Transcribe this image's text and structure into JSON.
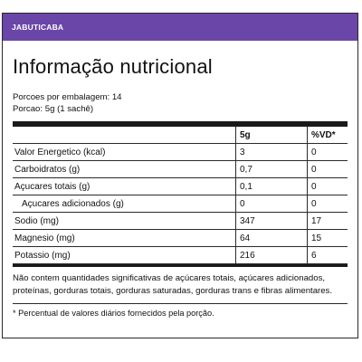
{
  "banner": "JABUTICABA",
  "title": "Informação nutricional",
  "servings_per_pack": "Porcoes por embalagem: 14",
  "serving_size": "Porcao: 5g (1 sachê)",
  "table": {
    "headers": [
      "",
      "5g",
      "%VD*"
    ],
    "rows": [
      {
        "label": "Valor Energetico (kcal)",
        "amount": "3",
        "dv": "0"
      },
      {
        "label": "Carboidratos (g)",
        "amount": "0,7",
        "dv": "0"
      },
      {
        "label": "Açucares totais (g)",
        "amount": "0,1",
        "dv": "0"
      },
      {
        "label": "Açucares adicionados (g)",
        "amount": "0",
        "dv": "0"
      },
      {
        "label": "Sodio (mg)",
        "amount": "347",
        "dv": "17"
      },
      {
        "label": "Magnesio (mg)",
        "amount": "64",
        "dv": "15"
      },
      {
        "label": "Potassio (mg)",
        "amount": "216",
        "dv": "6"
      }
    ]
  },
  "note": "Não contem quantidades significativas de açúcares totais, açúcares adicionados, proteínas, gorduras totais, gorduras saturadas, gorduras trans e fibras alimentares.",
  "footnote": "* Percentual de valores diários fornecidos pela porção.",
  "colors": {
    "banner": "#6a46a8",
    "rules": "#1a1a1a"
  }
}
